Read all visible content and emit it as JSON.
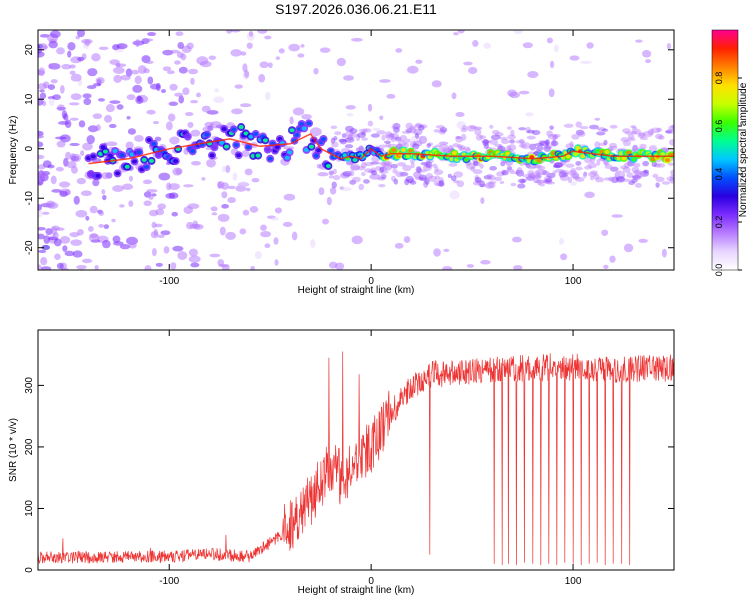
{
  "figure_title": "S197.2026.036.06.21.E11",
  "chart_data": [
    {
      "type": "heatmap",
      "title": "S197.2026.036.06.21.E11",
      "xlabel": "Height of straight line (km)",
      "ylabel": "Frequency (Hz)",
      "xlim": [
        -165,
        150
      ],
      "ylim": [
        -24.5,
        24
      ],
      "xticks": [
        -100,
        0,
        100
      ],
      "yticks": [
        -20,
        -10,
        0,
        10,
        20
      ],
      "colorbar": {
        "label": "Normalized spectral amplitude",
        "range": [
          0,
          1
        ],
        "ticks": [
          "0.0",
          "0.2",
          "0.4",
          "0.6",
          "0.8"
        ],
        "tick_values": [
          0.0,
          0.2,
          0.4,
          0.6,
          0.8
        ],
        "colors": [
          "#ffffff",
          "#e8d6ff",
          "#b77cff",
          "#7a2cff",
          "#2a00e0",
          "#0050ff",
          "#00c8ff",
          "#00ff90",
          "#3cff00",
          "#c8ff00",
          "#ffe000",
          "#ff8000",
          "#ff2000",
          "#ff0090"
        ]
      },
      "ridge": {
        "x": [
          -140,
          -120,
          -100,
          -85,
          -70,
          -55,
          -40,
          -30,
          -25,
          -20,
          -15,
          -10,
          -5,
          0,
          5,
          10,
          20,
          40,
          60,
          80,
          95,
          100,
          110,
          120,
          150
        ],
        "y": [
          -3,
          -2,
          0,
          1,
          2,
          0.5,
          1,
          3,
          0,
          -1,
          -2,
          -1.5,
          -2,
          0,
          -1.5,
          -1,
          -1,
          -1.5,
          -1.5,
          -2,
          -1.5,
          -0.5,
          -1,
          -1.5,
          -1.5
        ]
      },
      "ridge_peak_amplitude": 0.9
    },
    {
      "type": "line",
      "xlabel": "Height of straight line (km)",
      "ylabel": "SNR (10 * v/v)",
      "xlim": [
        -165,
        150
      ],
      "ylim": [
        0,
        390
      ],
      "xticks": [
        -100,
        0,
        100
      ],
      "yticks": [
        0,
        100,
        200,
        300
      ],
      "line_color": "#ee3333",
      "series": [
        {
          "name": "SNR",
          "envelope_x": [
            -165,
            -100,
            -80,
            -60,
            -45,
            -30,
            -20,
            -15,
            -5,
            0,
            10,
            20,
            30,
            50,
            60,
            80,
            100,
            120,
            150
          ],
          "envelope_y": [
            20,
            22,
            26,
            22,
            55,
            115,
            170,
            150,
            185,
            200,
            255,
            300,
            318,
            322,
            326,
            328,
            330,
            326,
            328
          ],
          "spikes_x": [
            -21,
            -14,
            -6,
            29,
            61,
            65,
            68,
            72,
            76,
            80,
            84,
            88,
            92,
            96,
            100,
            104,
            108,
            112,
            116,
            120,
            124,
            128
          ],
          "spikes_y": [
            345,
            355,
            318,
            25,
            10,
            8,
            10,
            8,
            12,
            10,
            8,
            10,
            8,
            12,
            10,
            8,
            10,
            12,
            8,
            10,
            10,
            8
          ]
        }
      ]
    }
  ]
}
